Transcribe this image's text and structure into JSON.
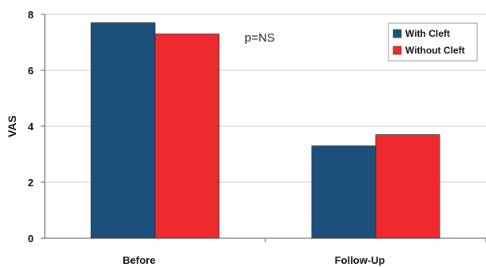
{
  "chart_data": {
    "type": "bar",
    "categories": [
      "Before",
      "Follow-Up"
    ],
    "series": [
      {
        "name": "With Cleft",
        "values": [
          7.7,
          3.3
        ],
        "color": "#1d4f7c"
      },
      {
        "name": "Without Cleft",
        "values": [
          7.3,
          3.7
        ],
        "color": "#ee2a2e"
      }
    ],
    "title": "",
    "xlabel": "",
    "ylabel": "VAS",
    "ylim": [
      0,
      8
    ],
    "yticks": [
      "0",
      "2",
      "4",
      "6",
      "8"
    ],
    "annotation": "p=NS",
    "legend": "top-right",
    "grid": true
  }
}
